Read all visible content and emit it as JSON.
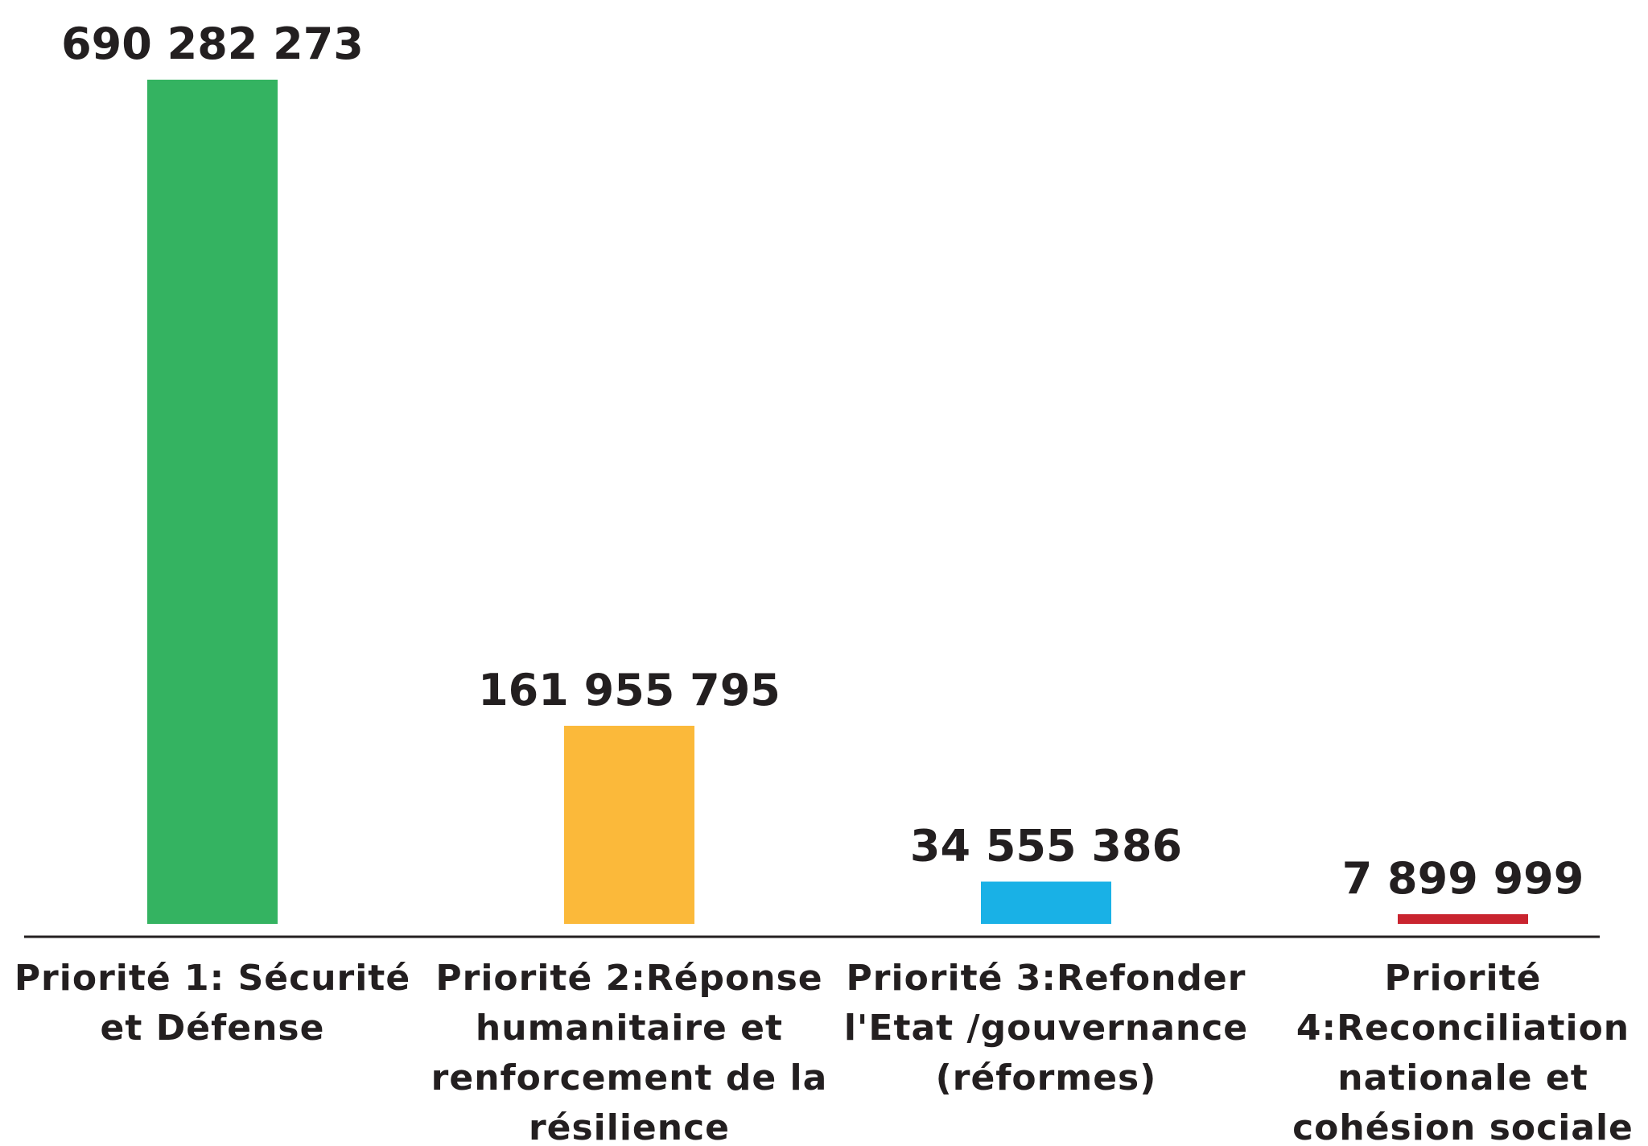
{
  "chart_data": {
    "type": "bar",
    "title": "",
    "xlabel": "",
    "ylabel": "",
    "ylim": [
      0,
      690282273
    ],
    "grid": false,
    "legend": "none",
    "categories": [
      {
        "label": "Priorité 1: Sécurité et Défense",
        "lines": [
          "Priorité 1: Sécurité",
          "et Défense"
        ]
      },
      {
        "label": "Priorité 2:Réponse humanitaire et renforcement de la résilience",
        "lines": [
          "Priorité 2:Réponse",
          "humanitaire et",
          "renforcement de la",
          "résilience"
        ]
      },
      {
        "label": "Priorité 3:Refonder l'Etat /gouvernance (réformes)",
        "lines": [
          "Priorité 3:Refonder",
          "l'Etat /gouvernance",
          "(réformes)"
        ]
      },
      {
        "label": "Priorité 4:Reconciliation nationale et cohésion sociale",
        "lines": [
          "Priorité",
          "4:Reconciliation",
          "nationale et",
          "cohésion sociale"
        ]
      }
    ],
    "values": [
      690282273,
      161955795,
      34555386,
      7899999
    ],
    "value_labels": [
      "690 282 273",
      "161 955 795",
      "34 555 386",
      "7 899 999"
    ],
    "colors": [
      "#34b361",
      "#fbb93a",
      "#19b1e6",
      "#c9242f"
    ],
    "axis_color": "#231f20"
  }
}
